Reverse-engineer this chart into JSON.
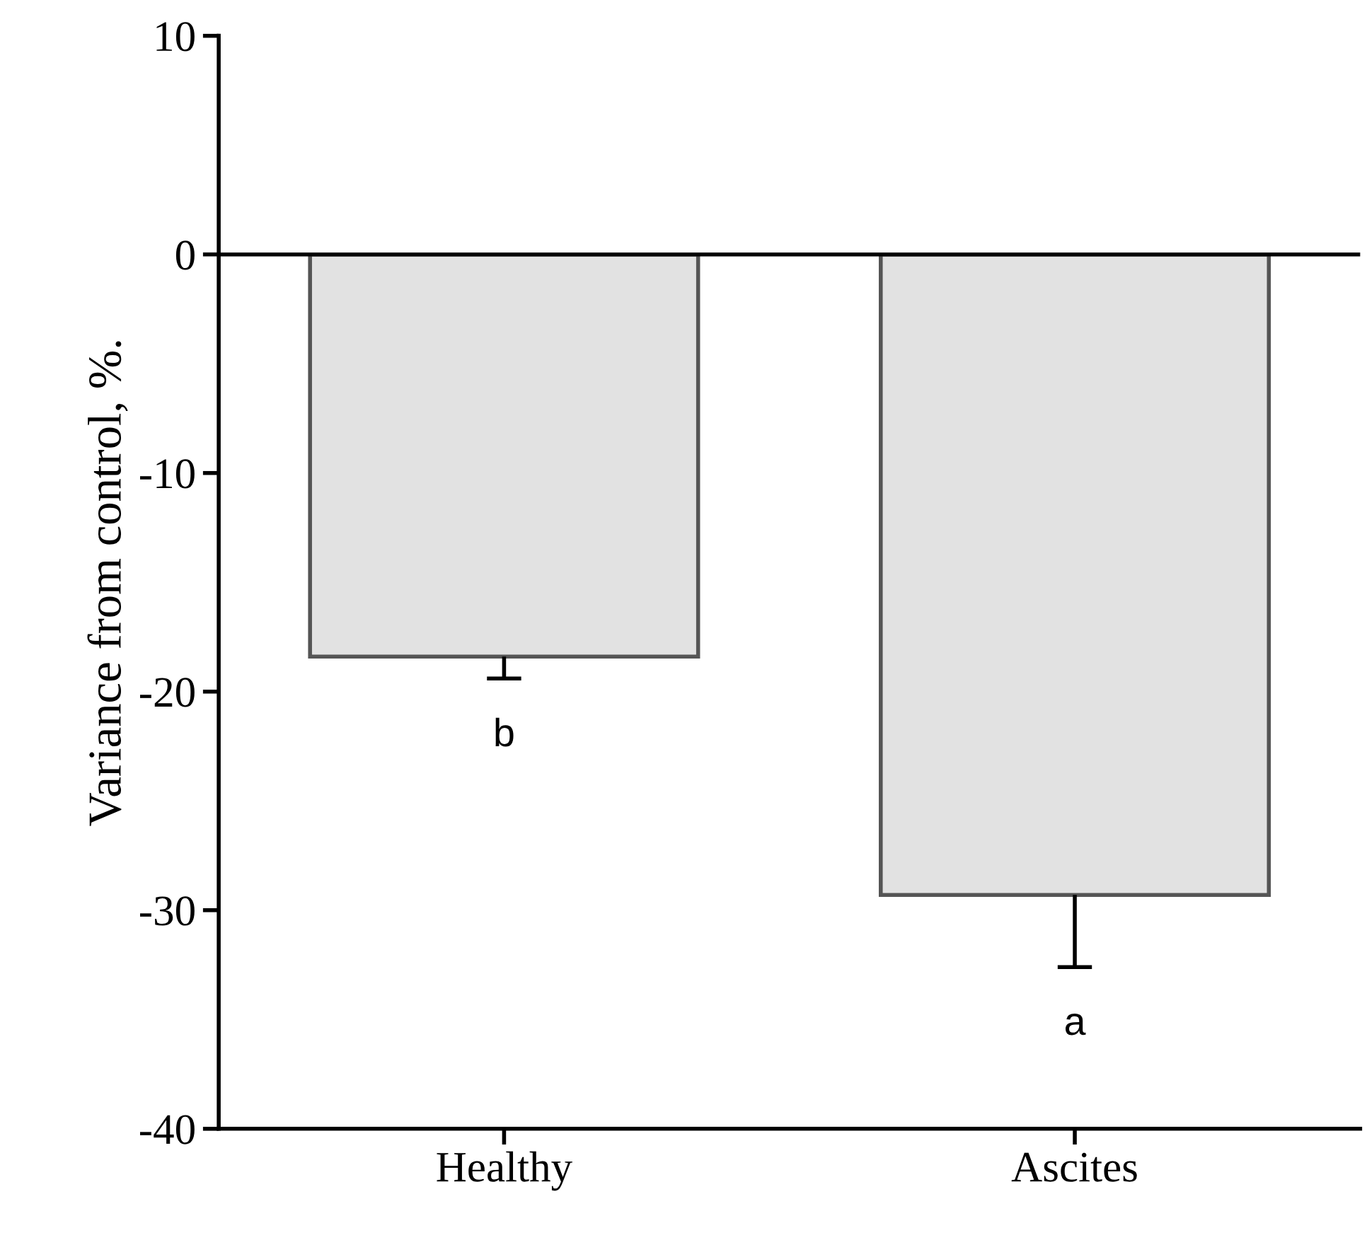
{
  "chart_data": {
    "type": "bar",
    "ylabel": "Variance from control, %.",
    "categories": [
      "Healthy",
      "Ascites"
    ],
    "values": [
      -18.4,
      -29.3
    ],
    "errors": [
      [
        -19.4,
        -18.4
      ],
      [
        -32.6,
        -29.3
      ]
    ],
    "color": "#e2e2e2",
    "ylim": [
      -40,
      10
    ],
    "yticks": [
      -40,
      -30,
      -20,
      -10,
      0,
      10
    ],
    "ref_lines": [
      {
        "axis": "y",
        "value": 0
      }
    ],
    "annotations": [
      "b",
      "a"
    ],
    "grid": false,
    "legend": false
  }
}
